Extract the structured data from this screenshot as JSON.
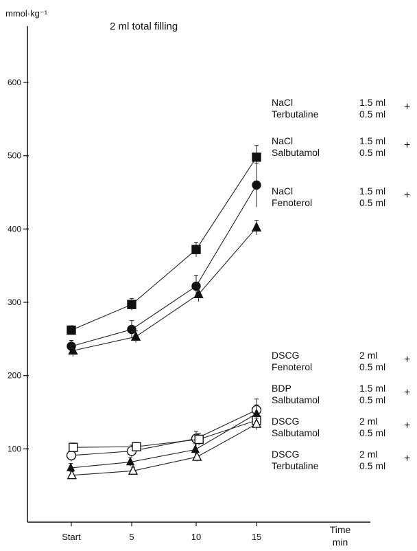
{
  "chart_data": {
    "type": "line",
    "title": "2 ml total filling",
    "ylabel": "mmol·kg⁻¹",
    "xlabel_line1": "Time",
    "xlabel_line2": "min",
    "categories": [
      "Start",
      "5",
      "10",
      "15"
    ],
    "x": [
      0,
      5,
      10,
      15
    ],
    "ylim": [
      0,
      600
    ],
    "yticks": [
      100,
      200,
      300,
      400,
      500,
      600
    ],
    "ytick_labels": [
      "100",
      "200",
      "300",
      "400",
      "500",
      "600"
    ],
    "grid": false,
    "legend": "right-side text labels beside line ends",
    "series": [
      {
        "marker": "filled-square",
        "values": [
          262,
          297,
          372,
          498
        ],
        "err": [
          6,
          8,
          10,
          16
        ],
        "label": {
          "line1_drug": "NaCl",
          "line1_dose": "1.5 ml",
          "line2_drug": "Terbutaline",
          "line2_dose": "0.5 ml",
          "plus": "+"
        }
      },
      {
        "marker": "filled-circle",
        "values": [
          240,
          263,
          322,
          460
        ],
        "err": [
          8,
          12,
          15,
          30
        ],
        "label": {
          "line1_drug": "NaCl",
          "line1_dose": "1.5 ml",
          "line2_drug": "Salbutamol",
          "line2_dose": "0.5 ml",
          "plus": "+"
        }
      },
      {
        "marker": "filled-triangle",
        "values": [
          234,
          253,
          311,
          402
        ],
        "err": [
          8,
          8,
          10,
          10
        ],
        "label": {
          "line1_drug": "NaCl",
          "line1_dose": "1.5 ml",
          "line2_drug": "Fenoterol",
          "line2_dose": "0.5 ml",
          "plus": "+"
        }
      },
      {
        "marker": "open-circle",
        "values": [
          91,
          97,
          114,
          153
        ],
        "err": [
          8,
          8,
          10,
          15
        ],
        "label": {
          "line1_drug": "BDP",
          "line1_dose": "1.5 ml",
          "line2_drug": "Salbutamol",
          "line2_dose": "0.5 ml",
          "plus": "+"
        }
      },
      {
        "marker": "open-square",
        "values": [
          102,
          103,
          113,
          139
        ],
        "err": [
          6,
          6,
          8,
          8
        ],
        "label": {
          "line1_drug": "DSCG",
          "line1_dose": "2 ml",
          "line2_drug": "Fenoterol",
          "line2_dose": "0.5 ml",
          "plus": "+"
        }
      },
      {
        "marker": "filled-triangle-small",
        "values": [
          74,
          82,
          99,
          148
        ],
        "err": [
          6,
          6,
          8,
          12
        ],
        "label": {
          "line1_drug": "DSCG",
          "line1_dose": "2 ml",
          "line2_drug": "Salbutamol",
          "line2_dose": "0.5 ml",
          "plus": "+"
        }
      },
      {
        "marker": "open-triangle",
        "values": [
          64,
          70,
          89,
          134
        ],
        "err": [
          5,
          5,
          6,
          8
        ],
        "label": {
          "line1_drug": "DSCG",
          "line1_dose": "2 ml",
          "line2_drug": "Terbutaline",
          "line2_dose": "0.5 ml",
          "plus": "+"
        }
      }
    ]
  }
}
